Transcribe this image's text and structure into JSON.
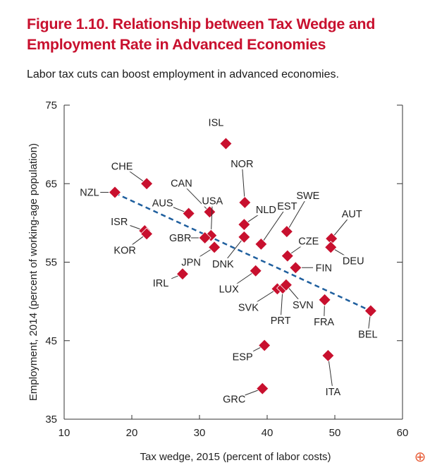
{
  "chart_data": {
    "type": "scatter",
    "title_line1": "Figure 1.10. Relationship between Tax Wedge and",
    "title_line2": "Employment Rate in Advanced Economies",
    "subtitle": "Labor tax cuts can boost employment in advanced economies.",
    "xlabel": "Tax wedge, 2015 (percent of labor costs)",
    "ylabel": "Employment, 2014 (percent of working-age population)",
    "xlim": [
      10,
      60
    ],
    "ylim": [
      35,
      75
    ],
    "xticks": [
      10,
      20,
      30,
      40,
      50,
      60
    ],
    "yticks": [
      35,
      45,
      55,
      65,
      75
    ],
    "trend": {
      "x": [
        17.5,
        55.3
      ],
      "y": [
        63.8,
        48.8
      ]
    },
    "points": [
      {
        "label": "ISL",
        "x": 33.9,
        "y": 70.1
      },
      {
        "label": "CHE",
        "x": 22.2,
        "y": 65.0
      },
      {
        "label": "NZL",
        "x": 17.5,
        "y": 63.9
      },
      {
        "label": "NOR",
        "x": 36.7,
        "y": 62.6
      },
      {
        "label": "CAN",
        "x": 31.5,
        "y": 61.4
      },
      {
        "label": "AUS",
        "x": 28.4,
        "y": 61.2
      },
      {
        "label": "USA",
        "x": 31.7,
        "y": 58.4
      },
      {
        "label": "NLD",
        "x": 36.6,
        "y": 59.8
      },
      {
        "label": "EST",
        "x": 39.1,
        "y": 57.3
      },
      {
        "label": "SWE",
        "x": 42.9,
        "y": 58.9
      },
      {
        "label": "AUT",
        "x": 49.5,
        "y": 58.0
      },
      {
        "label": "DEU",
        "x": 49.4,
        "y": 56.9
      },
      {
        "label": "ISR",
        "x": 21.9,
        "y": 59.0
      },
      {
        "label": "KOR",
        "x": 22.2,
        "y": 58.6
      },
      {
        "label": "GBR",
        "x": 30.8,
        "y": 58.1
      },
      {
        "label": "JPN",
        "x": 32.2,
        "y": 56.9
      },
      {
        "label": "DNK",
        "x": 36.6,
        "y": 58.2
      },
      {
        "label": "CZE",
        "x": 43.0,
        "y": 55.8
      },
      {
        "label": "FIN",
        "x": 44.2,
        "y": 54.3
      },
      {
        "label": "IRL",
        "x": 27.5,
        "y": 53.5
      },
      {
        "label": "LUX",
        "x": 38.3,
        "y": 53.9
      },
      {
        "label": "SVK",
        "x": 41.5,
        "y": 51.6
      },
      {
        "label": "PRT",
        "x": 42.3,
        "y": 51.7
      },
      {
        "label": "SVN",
        "x": 42.8,
        "y": 52.1
      },
      {
        "label": "FRA",
        "x": 48.5,
        "y": 50.2
      },
      {
        "label": "BEL",
        "x": 55.3,
        "y": 48.8
      },
      {
        "label": "ESP",
        "x": 39.6,
        "y": 44.4
      },
      {
        "label": "ITA",
        "x": 49.0,
        "y": 43.1
      },
      {
        "label": "GRC",
        "x": 39.3,
        "y": 38.9
      }
    ],
    "colors": {
      "marker": "#c8102e",
      "trend": "#1f5f9e",
      "title": "#c8102e"
    }
  },
  "ui": {
    "zoom_icon": "zoom-in-icon",
    "zoom_glyph": "⊕"
  }
}
